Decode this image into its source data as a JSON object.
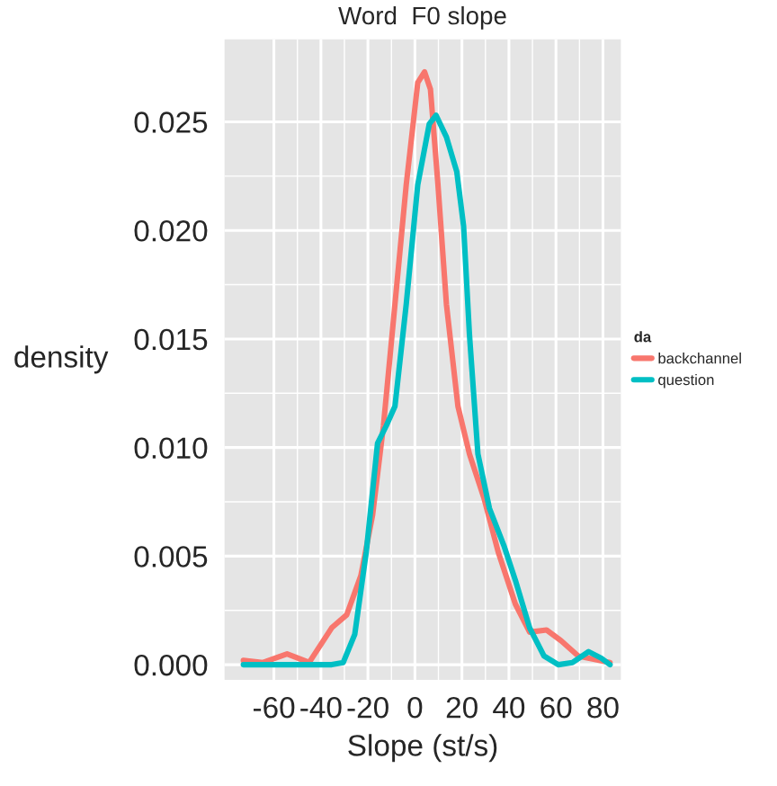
{
  "chart_data": {
    "type": "line",
    "title": "Word  F0 slope",
    "xlabel": "Slope (st/s)",
    "ylabel": "density",
    "legend_title": "da",
    "series": [
      {
        "name": "backchannel",
        "color": "#f8766d",
        "x": [
          -73,
          -64.6,
          -54.4,
          -45,
          -35.4,
          -29,
          -23,
          -18,
          -13.4,
          -8.5,
          -3.7,
          1.2,
          4.1,
          6.6,
          9.8,
          13.4,
          18.3,
          23.2,
          29.3,
          35.4,
          42.7,
          48.8,
          56,
          62.2,
          69.5,
          83
        ],
        "values": [
          0.0002,
          0.0001,
          0.0005,
          0.0001,
          0.0017,
          0.0023,
          0.0041,
          0.0069,
          0.011,
          0.0166,
          0.0221,
          0.0268,
          0.0273,
          0.0265,
          0.0221,
          0.0166,
          0.0119,
          0.0097,
          0.0077,
          0.0052,
          0.0028,
          0.0015,
          0.0016,
          0.0011,
          0.0004,
          0.0001
        ]
      },
      {
        "name": "question",
        "color": "#00bfc4",
        "x": [
          -73,
          -35.4,
          -30.5,
          -25.6,
          -20.7,
          -15.9,
          -12.2,
          -8.5,
          -3.7,
          1.2,
          6.1,
          9,
          13.4,
          17.8,
          20.7,
          23.2,
          26.8,
          31.7,
          37.8,
          42.7,
          48.8,
          54.9,
          61,
          67,
          73.9,
          79.3,
          83
        ],
        "values": [
          0,
          0,
          0.0001,
          0.0014,
          0.0052,
          0.0102,
          0.011,
          0.0119,
          0.0166,
          0.0221,
          0.0249,
          0.0253,
          0.0243,
          0.0227,
          0.0202,
          0.0152,
          0.0097,
          0.0072,
          0.0055,
          0.0039,
          0.0017,
          0.0004,
          0,
          0.0001,
          0.0006,
          0.0003,
          0
        ]
      }
    ],
    "xlim": [
      -81,
      87.6
    ],
    "ylim": [
      -0.0007,
      0.0288
    ],
    "xticks": [
      -60,
      -40,
      -20,
      0,
      20,
      40,
      60,
      80
    ],
    "yticks": [
      {
        "value": 0,
        "label": "0.000"
      },
      {
        "value": 0.005,
        "label": "0.005"
      },
      {
        "value": 0.01,
        "label": "0.010"
      },
      {
        "value": 0.015,
        "label": "0.015"
      },
      {
        "value": 0.02,
        "label": "0.020"
      },
      {
        "value": 0.025,
        "label": "0.025"
      }
    ],
    "grid": true,
    "legend": "right",
    "marker": "none",
    "line_style": "solid"
  }
}
